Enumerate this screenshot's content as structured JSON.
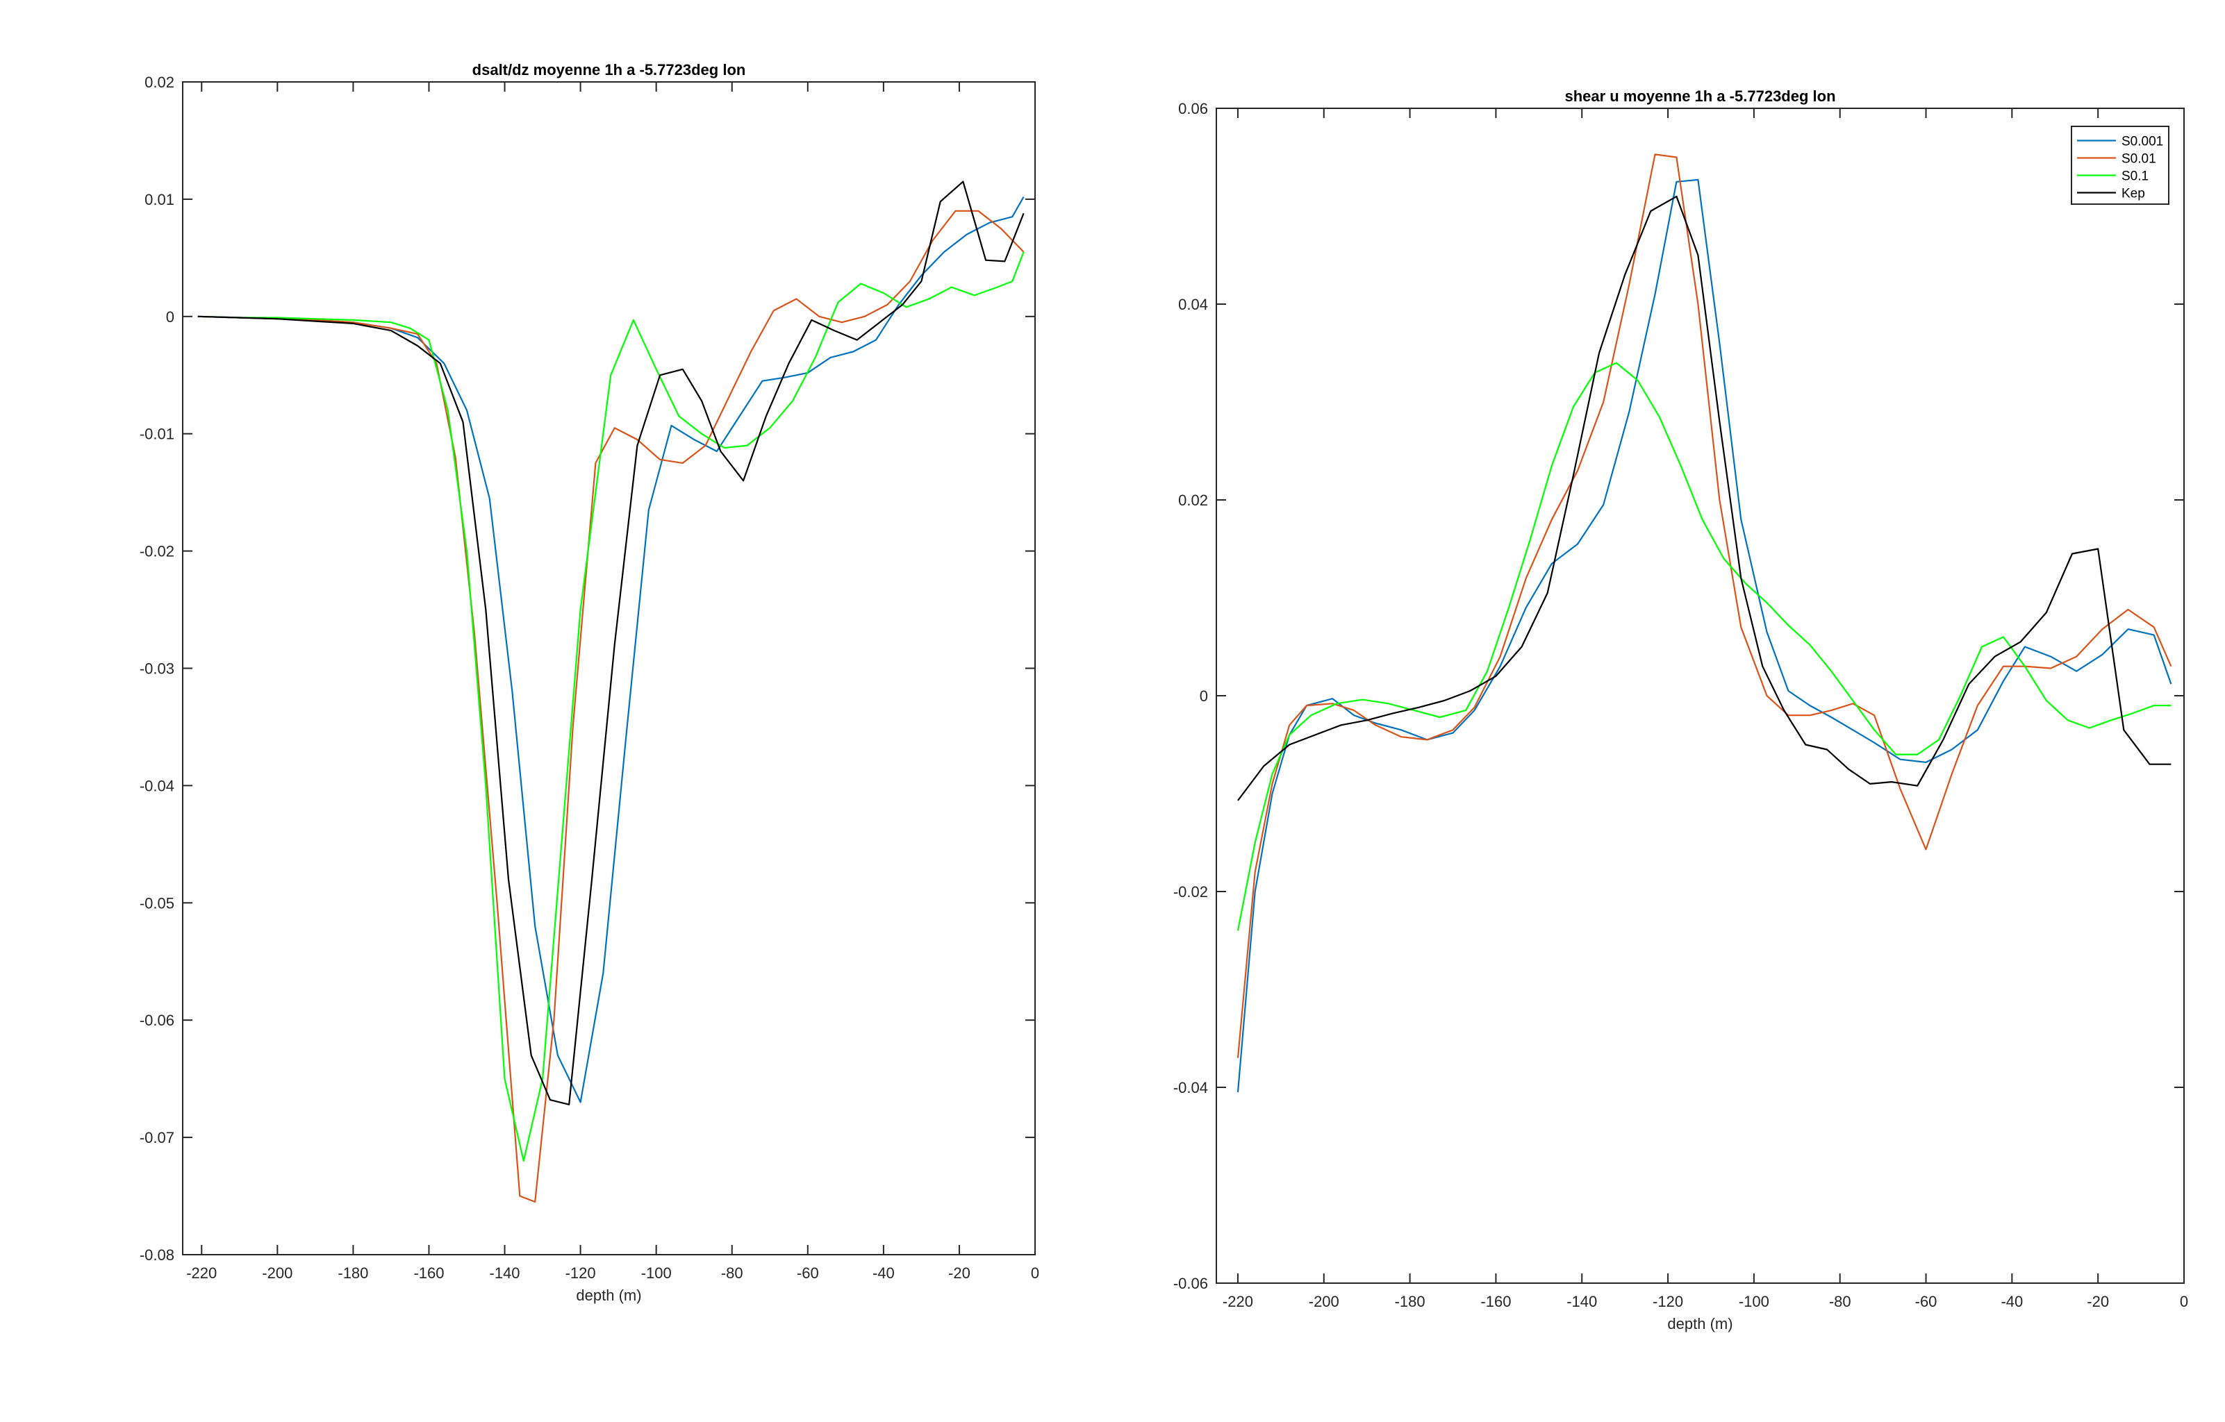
{
  "chart_data": [
    {
      "type": "line",
      "title": "dsalt/dz moyenne 1h a -5.7723deg lon",
      "xlabel": "depth (m)",
      "ylabel": "",
      "xlim": [
        -225,
        0
      ],
      "ylim": [
        -0.08,
        0.02
      ],
      "xticks": [
        -220,
        -200,
        -180,
        -160,
        -140,
        -120,
        -100,
        -80,
        -60,
        -40,
        -20,
        0
      ],
      "yticks": [
        -0.08,
        -0.07,
        -0.06,
        -0.05,
        -0.04,
        -0.03,
        -0.02,
        -0.01,
        0,
        0.01,
        0.02
      ],
      "xtick_labels": [
        "-220",
        "-200",
        "-180",
        "-160",
        "-140",
        "-120",
        "-100",
        "-80",
        "-60",
        "-40",
        "-20",
        "0"
      ],
      "ytick_labels": [
        "-0.08",
        "-0.07",
        "-0.06",
        "-0.05",
        "-0.04",
        "-0.03",
        "-0.02",
        "-0.01",
        "0",
        "0.01",
        "0.02"
      ],
      "grid": false,
      "legend": null,
      "series": [
        {
          "color": "#0072BD",
          "x": [
            -221,
            -210,
            -200,
            -190,
            -180,
            -170,
            -163,
            -156,
            -150,
            -144,
            -138,
            -132,
            -126,
            -120,
            -114,
            -108,
            -102,
            -96,
            -90,
            -84,
            -78,
            -72,
            -66,
            -60,
            -54,
            -48,
            -42,
            -36,
            -30,
            -24,
            -18,
            -12,
            -6,
            -3
          ],
          "y": [
            0,
            -0.0001,
            -0.0002,
            -0.0003,
            -0.0005,
            -0.001,
            -0.0018,
            -0.004,
            -0.008,
            -0.0155,
            -0.032,
            -0.052,
            -0.063,
            -0.067,
            -0.056,
            -0.036,
            -0.0165,
            -0.0093,
            -0.0105,
            -0.0115,
            -0.0085,
            -0.0055,
            -0.0052,
            -0.0048,
            -0.0035,
            -0.003,
            -0.002,
            0.001,
            0.0035,
            0.0055,
            0.007,
            0.008,
            0.0085,
            0.0102
          ]
        },
        {
          "color": "#D95319",
          "x": [
            -221,
            -210,
            -200,
            -190,
            -180,
            -170,
            -163,
            -158,
            -153,
            -148,
            -142,
            -136,
            -132,
            -127,
            -122,
            -116,
            -111,
            -105,
            -99,
            -93,
            -87,
            -81,
            -75,
            -69,
            -63,
            -57,
            -51,
            -45,
            -39,
            -33,
            -27,
            -21,
            -15,
            -9,
            -3
          ],
          "y": [
            0,
            -0.0001,
            -0.0002,
            -0.0003,
            -0.0005,
            -0.001,
            -0.0015,
            -0.004,
            -0.012,
            -0.027,
            -0.05,
            -0.075,
            -0.0755,
            -0.06,
            -0.035,
            -0.0125,
            -0.0095,
            -0.0105,
            -0.0122,
            -0.0125,
            -0.011,
            -0.007,
            -0.003,
            0.0005,
            0.0015,
            0,
            -0.0005,
            0,
            0.001,
            0.003,
            0.0065,
            0.009,
            0.009,
            0.0075,
            0.0055
          ]
        },
        {
          "color": "#00FF00",
          "x": [
            -221,
            -210,
            -200,
            -190,
            -180,
            -170,
            -165,
            -160,
            -155,
            -150,
            -145,
            -140,
            -135,
            -130,
            -125,
            -120,
            -112,
            -106,
            -100,
            -94,
            -88,
            -82,
            -76,
            -70,
            -64,
            -58,
            -52,
            -46,
            -40,
            -34,
            -28,
            -22,
            -16,
            -10,
            -6,
            -3
          ],
          "y": [
            0,
            -0.0001,
            -0.0001,
            -0.0002,
            -0.0003,
            -0.0005,
            -0.001,
            -0.002,
            -0.008,
            -0.02,
            -0.04,
            -0.065,
            -0.072,
            -0.065,
            -0.045,
            -0.025,
            -0.005,
            -0.0003,
            -0.0045,
            -0.0085,
            -0.01,
            -0.0112,
            -0.011,
            -0.0095,
            -0.0072,
            -0.0035,
            0.0012,
            0.0028,
            0.002,
            0.0008,
            0.0015,
            0.0025,
            0.0018,
            0.0025,
            0.003,
            0.0055
          ]
        },
        {
          "color": "#000000",
          "x": [
            -221,
            -210,
            -200,
            -190,
            -180,
            -170,
            -163,
            -157,
            -151,
            -145,
            -139,
            -133,
            -128,
            -123,
            -117,
            -111,
            -105,
            -99,
            -93,
            -88,
            -83,
            -77,
            -71,
            -65,
            -59,
            -53,
            -47,
            -41,
            -35,
            -30,
            -25,
            -19,
            -13,
            -8,
            -3
          ],
          "y": [
            0,
            -0.0001,
            -0.0002,
            -0.0004,
            -0.0006,
            -0.0012,
            -0.0025,
            -0.004,
            -0.009,
            -0.025,
            -0.048,
            -0.063,
            -0.0668,
            -0.0672,
            -0.048,
            -0.028,
            -0.011,
            -0.005,
            -0.0045,
            -0.0072,
            -0.0115,
            -0.014,
            -0.0085,
            -0.004,
            -0.0003,
            -0.0012,
            -0.002,
            -0.0005,
            0.001,
            0.003,
            0.0098,
            0.0115,
            0.0048,
            0.0047,
            0.0088
          ]
        }
      ]
    },
    {
      "type": "line",
      "title": "shear u moyenne 1h a -5.7723deg lon",
      "xlabel": "depth (m)",
      "ylabel": "",
      "xlim": [
        -225,
        0
      ],
      "ylim": [
        -0.06,
        0.06
      ],
      "xticks": [
        -220,
        -200,
        -180,
        -160,
        -140,
        -120,
        -100,
        -80,
        -60,
        -40,
        -20,
        0
      ],
      "yticks": [
        -0.06,
        -0.04,
        -0.02,
        0,
        0.02,
        0.04,
        0.06
      ],
      "xtick_labels": [
        "-220",
        "-200",
        "-180",
        "-160",
        "-140",
        "-120",
        "-100",
        "-80",
        "-60",
        "-40",
        "-20",
        "0"
      ],
      "ytick_labels": [
        "-0.06",
        "-0.04",
        "-0.02",
        "0",
        "0.02",
        "0.04",
        "0.06"
      ],
      "grid": false,
      "legend": "top-right",
      "series": [
        {
          "name": "S0.001",
          "color": "#0072BD",
          "x": [
            -220,
            -216,
            -212,
            -208,
            -204,
            -198,
            -193,
            -188,
            -182,
            -176,
            -170,
            -165,
            -159,
            -153,
            -147,
            -141,
            -135,
            -129,
            -123,
            -118,
            -113,
            -108,
            -103,
            -97,
            -92,
            -87,
            -82,
            -77,
            -72,
            -66,
            -60,
            -54,
            -48,
            -42,
            -37,
            -31,
            -25,
            -19,
            -13,
            -7,
            -3
          ],
          "y": [
            -0.0405,
            -0.02,
            -0.01,
            -0.004,
            -0.001,
            -0.0003,
            -0.002,
            -0.0028,
            -0.0035,
            -0.0045,
            -0.0038,
            -0.0015,
            0.003,
            0.009,
            0.0135,
            0.0155,
            0.0195,
            0.029,
            0.041,
            0.0525,
            0.0527,
            0.036,
            0.018,
            0.0065,
            0.0005,
            -0.001,
            -0.0022,
            -0.0035,
            -0.0048,
            -0.0065,
            -0.0068,
            -0.0055,
            -0.0035,
            0.0015,
            0.005,
            0.004,
            0.0025,
            0.0042,
            0.0068,
            0.0062,
            0.0012
          ]
        },
        {
          "name": "S0.01",
          "color": "#D95319",
          "x": [
            -220,
            -216,
            -212,
            -208,
            -204,
            -198,
            -193,
            -188,
            -182,
            -176,
            -170,
            -165,
            -159,
            -153,
            -147,
            -141,
            -135,
            -129,
            -123,
            -118,
            -113,
            -108,
            -103,
            -97,
            -92,
            -87,
            -82,
            -77,
            -72,
            -66,
            -60,
            -54,
            -48,
            -42,
            -37,
            -31,
            -25,
            -19,
            -13,
            -7,
            -3
          ],
          "y": [
            -0.037,
            -0.018,
            -0.009,
            -0.003,
            -0.001,
            -0.0008,
            -0.0015,
            -0.003,
            -0.0042,
            -0.0045,
            -0.0035,
            -0.0012,
            0.004,
            0.012,
            0.018,
            0.023,
            0.03,
            0.042,
            0.0553,
            0.055,
            0.04,
            0.02,
            0.007,
            0,
            -0.002,
            -0.002,
            -0.0015,
            -0.0008,
            -0.002,
            -0.0095,
            -0.0157,
            -0.008,
            -0.001,
            0.003,
            0.003,
            0.0028,
            0.004,
            0.0068,
            0.0088,
            0.007,
            0.003
          ]
        },
        {
          "name": "S0.1",
          "color": "#00FF00",
          "x": [
            -220,
            -216,
            -212,
            -208,
            -203,
            -197,
            -191,
            -185,
            -179,
            -173,
            -167,
            -162,
            -157,
            -152,
            -147,
            -142,
            -137,
            -132,
            -127,
            -122,
            -117,
            -112,
            -107,
            -102,
            -97,
            -92,
            -87,
            -82,
            -77,
            -72,
            -67,
            -62,
            -57,
            -52,
            -47,
            -42,
            -37,
            -32,
            -27,
            -22,
            -17,
            -12,
            -7,
            -3
          ],
          "y": [
            -0.024,
            -0.015,
            -0.008,
            -0.004,
            -0.002,
            -0.0008,
            -0.0004,
            -0.0008,
            -0.0015,
            -0.0022,
            -0.0015,
            0.0025,
            0.009,
            0.016,
            0.0235,
            0.0295,
            0.033,
            0.034,
            0.0322,
            0.0285,
            0.0235,
            0.018,
            0.014,
            0.0115,
            0.0095,
            0.0072,
            0.0052,
            0.0025,
            -0.0005,
            -0.0035,
            -0.006,
            -0.006,
            -0.0045,
            0,
            0.005,
            0.006,
            0.003,
            -0.0005,
            -0.0025,
            -0.0033,
            -0.0025,
            -0.0018,
            -0.001,
            -0.001
          ]
        },
        {
          "name": "Kep",
          "color": "#000000",
          "x": [
            -220,
            -214,
            -208,
            -202,
            -196,
            -190,
            -184,
            -178,
            -172,
            -166,
            -160,
            -154,
            -148,
            -142,
            -136,
            -130,
            -124,
            -118,
            -113,
            -108,
            -103,
            -98,
            -93,
            -88,
            -83,
            -78,
            -73,
            -68,
            -62,
            -56,
            -50,
            -44,
            -38,
            -32,
            -26,
            -20,
            -14,
            -8,
            -3
          ],
          "y": [
            -0.0107,
            -0.0072,
            -0.005,
            -0.004,
            -0.003,
            -0.0025,
            -0.0018,
            -0.0012,
            -0.0005,
            0.0005,
            0.002,
            0.005,
            0.0105,
            0.0225,
            0.035,
            0.043,
            0.0495,
            0.051,
            0.045,
            0.028,
            0.012,
            0.003,
            -0.0015,
            -0.005,
            -0.0055,
            -0.0075,
            -0.009,
            -0.0088,
            -0.0092,
            -0.0045,
            0.0012,
            0.004,
            0.0055,
            0.0085,
            0.0145,
            0.015,
            -0.0035,
            -0.007,
            -0.007
          ]
        }
      ]
    }
  ]
}
